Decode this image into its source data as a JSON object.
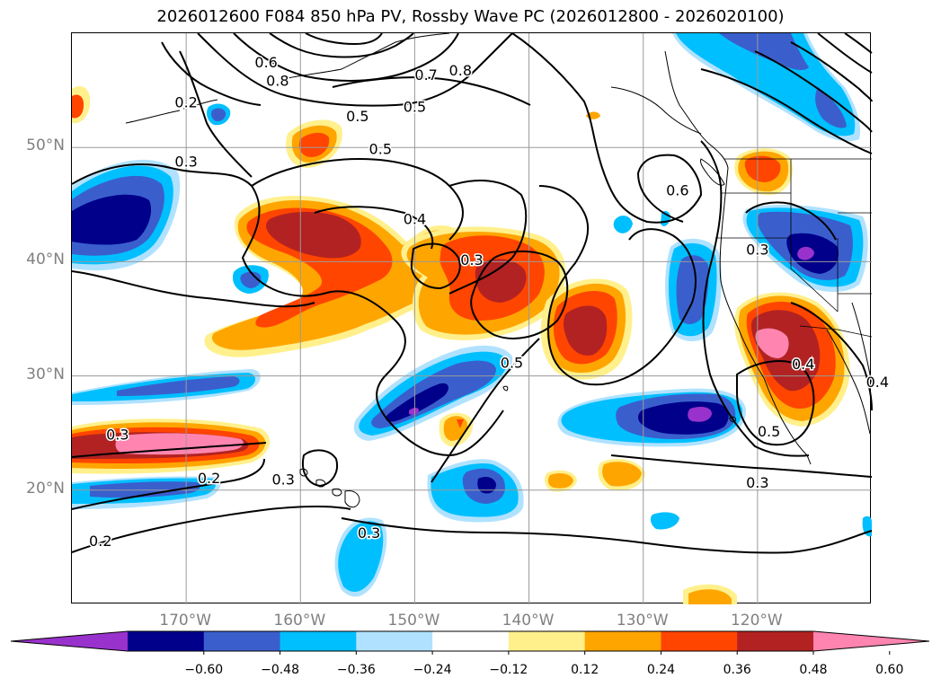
{
  "title": "2026012600 F084 850 hPa PV, Rossby Wave PC (2026012800 - 2026020100)",
  "map": {
    "lat_range": [
      10,
      60
    ],
    "lon_range": [
      -180,
      -110
    ],
    "lat_labels": [
      {
        "lat": 50,
        "text": "50°N"
      },
      {
        "lat": 40,
        "text": "40°N"
      },
      {
        "lat": 30,
        "text": "30°N"
      },
      {
        "lat": 20,
        "text": "20°N"
      }
    ],
    "lon_labels": [
      {
        "lon": -170,
        "text": "170°W"
      },
      {
        "lon": -160,
        "text": "160°W"
      },
      {
        "lon": -150,
        "text": "150°W"
      },
      {
        "lon": -140,
        "text": "140°W"
      },
      {
        "lon": -130,
        "text": "130°W"
      },
      {
        "lon": -120,
        "text": "120°W"
      }
    ],
    "contour_labels": [
      {
        "lon": -170,
        "lat": 53.9,
        "text": "0.2"
      },
      {
        "lon": -170,
        "lat": 48.7,
        "text": "0.3"
      },
      {
        "lon": -163,
        "lat": 57.4,
        "text": "0.6"
      },
      {
        "lon": -162,
        "lat": 55.8,
        "text": "0.8"
      },
      {
        "lon": -155,
        "lat": 52.7,
        "text": "0.5"
      },
      {
        "lon": -149,
        "lat": 56.3,
        "text": "0.7"
      },
      {
        "lon": -146,
        "lat": 56.7,
        "text": "0.8"
      },
      {
        "lon": -153,
        "lat": 49.8,
        "text": "0.5"
      },
      {
        "lon": -150,
        "lat": 43.7,
        "text": "0.4"
      },
      {
        "lon": -145,
        "lat": 40.1,
        "text": "0.3"
      },
      {
        "lon": -141.5,
        "lat": 31.1,
        "text": "0.5"
      },
      {
        "lon": -127,
        "lat": 46.2,
        "text": "0.6"
      },
      {
        "lon": -120,
        "lat": 41.0,
        "text": "0.3"
      },
      {
        "lon": -116,
        "lat": 31.0,
        "text": "0.4"
      },
      {
        "lon": -109.5,
        "lat": 29.4,
        "text": "0.4"
      },
      {
        "lon": -119,
        "lat": 25.1,
        "text": "0.5"
      },
      {
        "lon": -120,
        "lat": 20.6,
        "text": "0.3"
      },
      {
        "lon": -161.5,
        "lat": 20.9,
        "text": "0.3"
      },
      {
        "lon": -176,
        "lat": 24.8,
        "text": "0.3"
      },
      {
        "lon": -168,
        "lat": 21.0,
        "text": "0.2"
      },
      {
        "lon": -177.5,
        "lat": 15.5,
        "text": "0.2"
      },
      {
        "lon": -154,
        "lat": 16.2,
        "text": "0.3"
      },
      {
        "lon": -150,
        "lat": 53.5,
        "text": "0.5"
      }
    ]
  },
  "colorbar": {
    "colors": [
      "#9932cc",
      "#00008b",
      "#3a5fcd",
      "#00bfff",
      "#b0e2ff",
      "#ffffff",
      "#fff08c",
      "#ffa500",
      "#ff4500",
      "#b22222",
      "#ff85b0"
    ],
    "ticks": [
      "−0.60",
      "−0.48",
      "−0.36",
      "−0.24",
      "−0.12",
      "0.12",
      "0.24",
      "0.36",
      "0.48",
      "0.60"
    ]
  }
}
